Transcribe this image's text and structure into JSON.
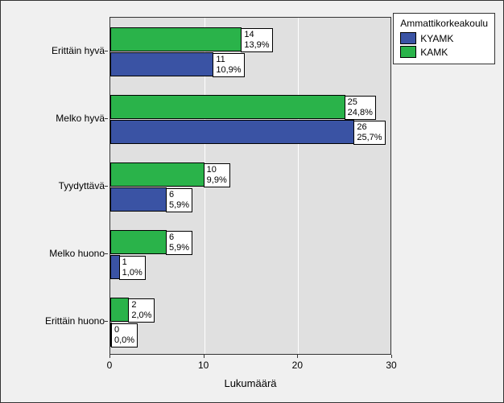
{
  "chart": {
    "type": "bar-horizontal-grouped",
    "background_color": "#f0f0f0",
    "plot_background_color": "#e0e0e0",
    "grid_color": "#ffffff",
    "border_color": "#333333",
    "x_title": "Lukumäärä",
    "x_title_fontsize": 13,
    "xlim": [
      0,
      30
    ],
    "xticks": [
      0,
      10,
      20,
      30
    ],
    "categories": [
      "Erittäin hyvä",
      "Melko hyvä",
      "Tyydyttävä",
      "Melko huono",
      "Erittäin huono"
    ],
    "label_fontsize": 12,
    "bar_label_fontsize": 11,
    "legend": {
      "title": "Ammattikorkeakoulu",
      "items": [
        {
          "name": "KYAMK",
          "color": "#3a53a4"
        },
        {
          "name": "KAMK",
          "color": "#2ab34a"
        }
      ],
      "title_fontsize": 12,
      "item_fontsize": 12
    },
    "series": {
      "KAMK": {
        "color": "#2ab34a",
        "data": [
          {
            "count": 14,
            "pct": "13,9%"
          },
          {
            "count": 25,
            "pct": "24,8%"
          },
          {
            "count": 10,
            "pct": "9,9%"
          },
          {
            "count": 6,
            "pct": "5,9%"
          },
          {
            "count": 2,
            "pct": "2,0%"
          }
        ]
      },
      "KYAMK": {
        "color": "#3a53a4",
        "data": [
          {
            "count": 11,
            "pct": "10,9%"
          },
          {
            "count": 26,
            "pct": "25,7%"
          },
          {
            "count": 6,
            "pct": "5,9%"
          },
          {
            "count": 1,
            "pct": "1,0%"
          },
          {
            "count": 0,
            "pct": "0,0%"
          }
        ]
      }
    }
  }
}
